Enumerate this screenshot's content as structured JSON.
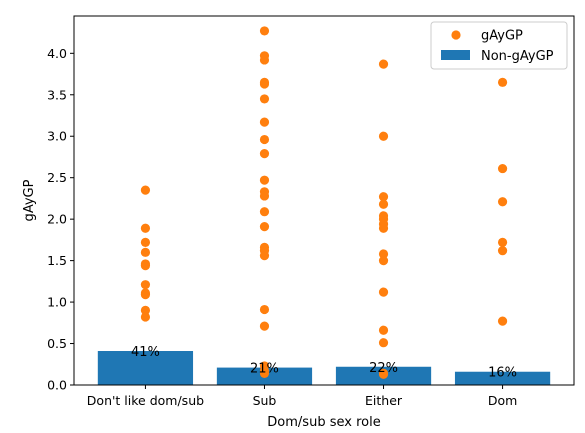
{
  "chart_data": {
    "type": "bar",
    "xlabel": "Dom/sub sex role",
    "ylabel": "gAyGP",
    "ylim": [
      0,
      4.45
    ],
    "yticks": [
      "0.0",
      "0.5",
      "1.0",
      "1.5",
      "2.0",
      "2.5",
      "3.0",
      "3.5",
      "4.0"
    ],
    "categories": [
      "Don't like dom/sub",
      "Sub",
      "Either",
      "Dom"
    ],
    "grid": false,
    "legend_position": "top-right",
    "series": [
      {
        "name": "Non-gAyGP",
        "kind": "bar",
        "color": "#1f77b4",
        "values": [
          0.41,
          0.21,
          0.22,
          0.16
        ],
        "labels": [
          "41%",
          "21%",
          "22%",
          "16%"
        ]
      },
      {
        "name": "gAyGP",
        "kind": "scatter",
        "color": "#ff7f0e",
        "points": [
          [
            2.35,
            1.89,
            1.72,
            1.6,
            1.46,
            1.44,
            1.21,
            1.11,
            1.09,
            0.9,
            0.82
          ],
          [
            4.27,
            3.97,
            3.92,
            3.65,
            3.63,
            3.45,
            3.17,
            2.96,
            2.79,
            2.47,
            2.33,
            2.28,
            2.09,
            1.91,
            1.66,
            1.62,
            1.56,
            0.91,
            0.71,
            0.23,
            0.17,
            0.14
          ],
          [
            3.87,
            3.0,
            2.27,
            2.18,
            2.04,
            2.0,
            1.94,
            1.89,
            1.58,
            1.5,
            1.12,
            0.66,
            0.51,
            0.14,
            0.13
          ],
          [
            3.65,
            2.61,
            2.21,
            1.72,
            1.62,
            0.77
          ]
        ]
      }
    ]
  }
}
